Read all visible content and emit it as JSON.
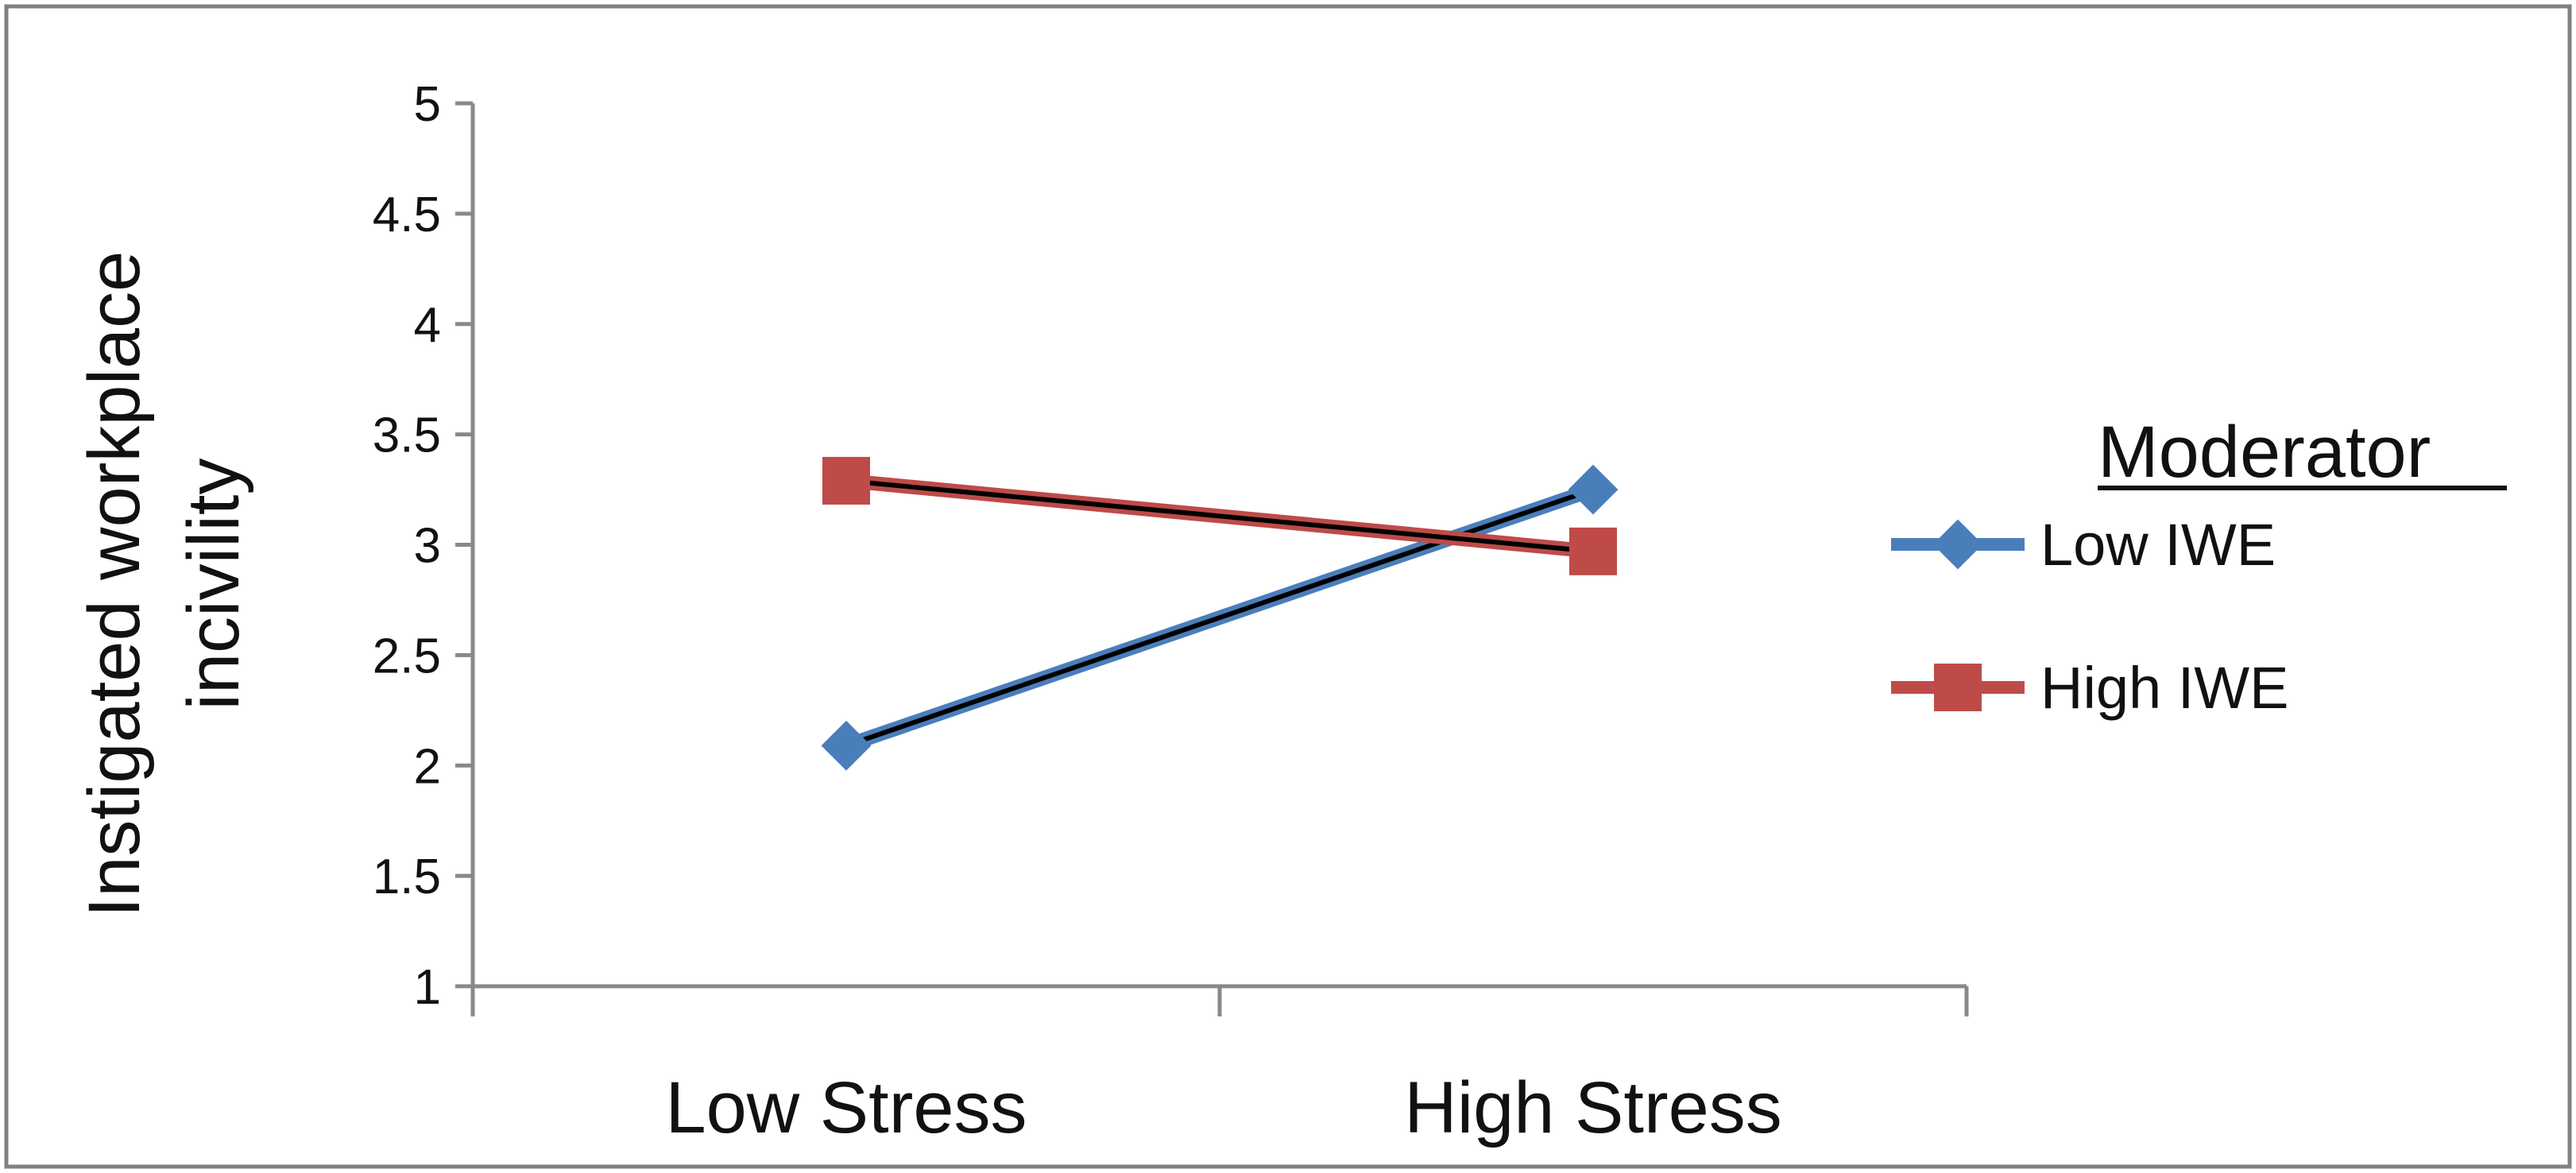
{
  "chart_data": {
    "type": "line",
    "categories": [
      "Low Stress",
      "High Stress"
    ],
    "series": [
      {
        "name": "Low IWE",
        "values": [
          2.09,
          3.25
        ],
        "color": "#4a7ebb",
        "marker": "diamond"
      },
      {
        "name": "High IWE",
        "values": [
          3.29,
          2.97
        ],
        "color": "#be4b48",
        "marker": "square"
      }
    ],
    "title": "",
    "xlabel": "",
    "ylabel": "Instigated workplace incivility",
    "ylim": [
      1,
      5
    ],
    "yticks": [
      "1",
      "1.5",
      "2",
      "2.5",
      "3",
      "3.5",
      "4",
      "4.5",
      "5"
    ],
    "grid": false,
    "legend": {
      "title": "Moderator",
      "position": "right"
    },
    "overlay_line_color": "#000000",
    "axis_color": "#898989",
    "frame_color": "#808080"
  }
}
